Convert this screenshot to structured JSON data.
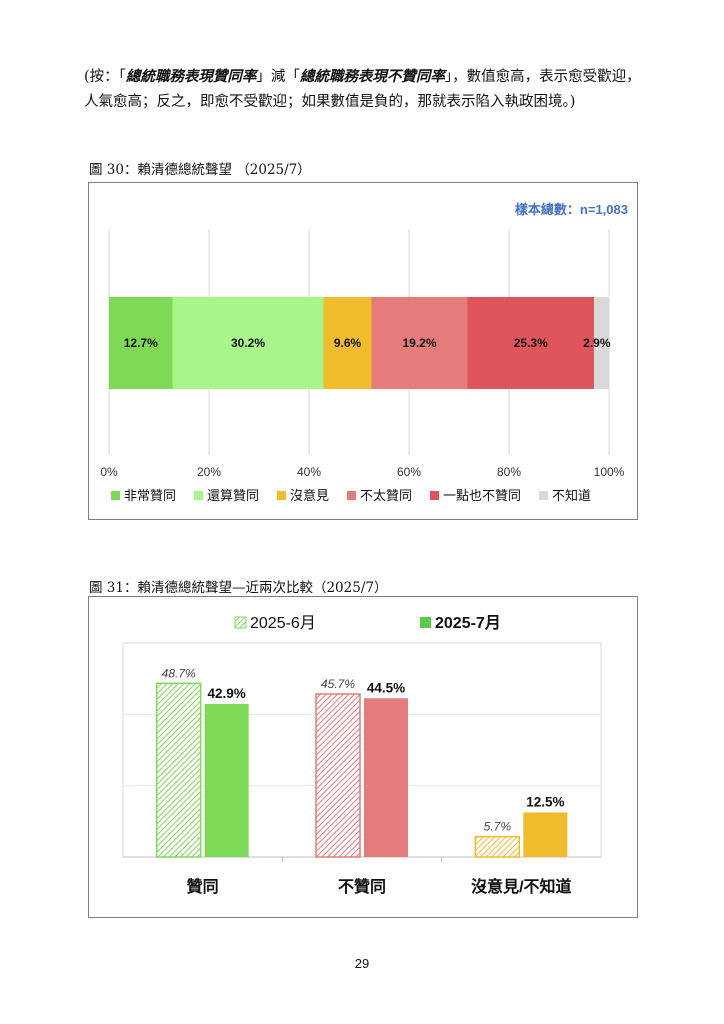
{
  "note": {
    "p1": "(按：「",
    "em1": "總統職務表現贊同率",
    "p2": "」減「",
    "em2": "總統職務表現不贊同率",
    "p3": "」，數值愈高，表示愈受歡迎，人氣愈高；反之，即愈不受歡迎；如果數值是負的，那就表示陷入執政困境。)"
  },
  "figure30": {
    "title": "圖 30：賴清德總統聲望 （2025/7）",
    "sample_label": "樣本總數：n=1,083"
  },
  "figure31": {
    "title": "圖 31：賴清德總統聲望—近兩次比較（2025/7）"
  },
  "page_number": "29",
  "chart_data": [
    {
      "type": "bar",
      "orientation": "horizontal-stacked",
      "categories": [
        "非常贊同",
        "還算贊同",
        "沒意見",
        "不太贊同",
        "一點也不贊同",
        "不知道"
      ],
      "values": [
        12.7,
        30.2,
        9.6,
        19.2,
        25.3,
        2.9
      ],
      "labels": [
        "12.7%",
        "30.2%",
        "9.6%",
        "19.2%",
        "25.3%",
        "2.9%"
      ],
      "colors": [
        "#7ed957",
        "#a9f58a",
        "#f0bc2e",
        "#e57b7b",
        "#e0545c",
        "#d9d9d9"
      ],
      "xlim": [
        0,
        100
      ],
      "xticks": [
        "0%",
        "20%",
        "40%",
        "60%",
        "80%",
        "100%"
      ],
      "grid": true,
      "legend": "bottom"
    },
    {
      "type": "bar",
      "categories": [
        "贊同",
        "不贊同",
        "沒意見/不知道"
      ],
      "series": [
        {
          "name": "2025-6月",
          "values": [
            48.7,
            45.7,
            5.7
          ],
          "labels": [
            "48.7%",
            "45.7%",
            "5.7%"
          ],
          "style": "hatched"
        },
        {
          "name": "2025-7月",
          "values": [
            42.9,
            44.5,
            12.5
          ],
          "labels": [
            "42.9%",
            "44.5%",
            "12.5%"
          ],
          "style": "solid"
        }
      ],
      "colors": [
        "#7ed957",
        "#e57b7b",
        "#f0bc2e"
      ],
      "legend_colors": [
        "#7ed957",
        "#5cc94a"
      ],
      "ylim": [
        0,
        60
      ],
      "grid": true,
      "legend": "top"
    }
  ]
}
